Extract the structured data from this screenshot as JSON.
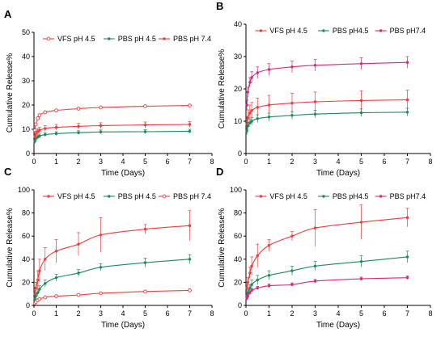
{
  "colors": {
    "red": "#ee3b3b",
    "green": "#1e8a5a",
    "pink": "#d6297a"
  },
  "chart_data": [
    {
      "panel": "A",
      "type": "line",
      "xlabel": "Time (Days)",
      "ylabel": "Cumulative Release%",
      "xlim": [
        0,
        8
      ],
      "ylim": [
        0,
        50
      ],
      "xticks": [
        0,
        1,
        2,
        3,
        4,
        5,
        6,
        7,
        8
      ],
      "yticks": [
        0,
        10,
        20,
        30,
        40,
        50
      ],
      "legend_position": "top",
      "series": [
        {
          "name": "VFS pH 4.5",
          "color": "red",
          "marker": "open-circle",
          "x": [
            0.04,
            0.08,
            0.17,
            0.25,
            0.5,
            1,
            2,
            3,
            5,
            7
          ],
          "y": [
            9.5,
            12.0,
            14.5,
            15.8,
            17.0,
            17.8,
            18.5,
            19.0,
            19.5,
            19.8
          ],
          "err": [
            0.4,
            0.5,
            0.5,
            0.5,
            0.4,
            0.4,
            0.4,
            0.4,
            0.4,
            0.4
          ]
        },
        {
          "name": "PBS pH 4.5",
          "color": "green",
          "marker": "dot",
          "x": [
            0.04,
            0.08,
            0.17,
            0.25,
            0.5,
            1,
            2,
            3,
            5,
            7
          ],
          "y": [
            5.0,
            6.0,
            6.8,
            7.2,
            7.8,
            8.2,
            8.6,
            8.9,
            9.0,
            9.2
          ],
          "err": [
            0.8,
            0.8,
            0.8,
            0.8,
            0.8,
            0.8,
            0.8,
            0.8,
            0.8,
            0.8
          ]
        },
        {
          "name": "PBS pH 7.4",
          "color": "red",
          "marker": "dot",
          "x": [
            0.04,
            0.08,
            0.17,
            0.25,
            0.5,
            1,
            2,
            3,
            5,
            7
          ],
          "y": [
            7.0,
            8.0,
            9.0,
            9.6,
            10.3,
            10.8,
            11.2,
            11.5,
            11.8,
            12.0
          ],
          "err": [
            1.2,
            1.2,
            1.2,
            1.2,
            1.2,
            1.2,
            1.2,
            1.2,
            1.2,
            1.2
          ]
        }
      ]
    },
    {
      "panel": "B",
      "type": "line",
      "xlabel": "Time (Days)",
      "ylabel": "Cumulative Release%",
      "xlim": [
        0,
        8
      ],
      "ylim": [
        0,
        40
      ],
      "xticks": [
        0,
        1,
        2,
        3,
        4,
        5,
        6,
        7,
        8
      ],
      "yticks": [
        0,
        10,
        20,
        30,
        40
      ],
      "legend_position": "top",
      "series": [
        {
          "name": "VFS pH 4.5",
          "color": "red",
          "marker": "dot",
          "x": [
            0.04,
            0.08,
            0.17,
            0.25,
            0.5,
            1,
            2,
            3,
            5,
            7
          ],
          "y": [
            9.0,
            11.0,
            12.5,
            13.3,
            14.3,
            15.0,
            15.6,
            16.0,
            16.4,
            16.6
          ],
          "err": [
            2.5,
            2.5,
            2.5,
            2.5,
            2.8,
            3.0,
            3.0,
            3.0,
            3.0,
            3.0
          ]
        },
        {
          "name": "PBS pH4.5",
          "color": "green",
          "marker": "dot",
          "x": [
            0.04,
            0.08,
            0.17,
            0.25,
            0.5,
            1,
            2,
            3,
            5,
            7
          ],
          "y": [
            7.0,
            8.5,
            9.5,
            10.0,
            10.8,
            11.3,
            11.8,
            12.2,
            12.6,
            12.8
          ],
          "err": [
            1.2,
            1.2,
            1.2,
            1.2,
            1.2,
            1.2,
            1.2,
            1.2,
            1.2,
            1.2
          ]
        },
        {
          "name": "PBS pH7.4",
          "color": "pink",
          "marker": "dot",
          "x": [
            0.04,
            0.08,
            0.17,
            0.25,
            0.5,
            1,
            2,
            3,
            5,
            7
          ],
          "y": [
            15.0,
            19.0,
            22.0,
            23.5,
            25.0,
            26.0,
            26.8,
            27.3,
            27.8,
            28.2
          ],
          "err": [
            1.5,
            1.5,
            1.5,
            1.8,
            1.8,
            1.8,
            1.8,
            1.8,
            1.8,
            1.8
          ]
        }
      ]
    },
    {
      "panel": "C",
      "type": "line",
      "xlabel": "Time (Days)",
      "ylabel": "Cumulative Release%",
      "xlim": [
        0,
        8
      ],
      "ylim": [
        0,
        100
      ],
      "xticks": [
        0,
        1,
        2,
        3,
        4,
        5,
        6,
        7,
        8
      ],
      "yticks": [
        0,
        20,
        40,
        60,
        80,
        100
      ],
      "legend_position": "top",
      "series": [
        {
          "name": "VFS pH 4.5",
          "color": "red",
          "marker": "dot",
          "x": [
            0.04,
            0.08,
            0.17,
            0.25,
            0.5,
            1,
            2,
            3,
            5,
            7
          ],
          "y": [
            10,
            15,
            22,
            30,
            40,
            47,
            53,
            61,
            66,
            69
          ],
          "err": [
            3,
            5,
            8,
            10,
            10,
            10,
            10,
            15,
            4,
            13
          ]
        },
        {
          "name": "PBS pH 4.5",
          "color": "green",
          "marker": "dot",
          "x": [
            0.04,
            0.08,
            0.17,
            0.25,
            0.5,
            1,
            2,
            3,
            5,
            7
          ],
          "y": [
            6,
            8,
            11,
            14,
            19,
            24,
            28,
            33,
            37,
            40
          ],
          "err": [
            2,
            2,
            3,
            3,
            3,
            3,
            3,
            3,
            4,
            4
          ]
        },
        {
          "name": "PBS pH 7.4",
          "color": "red",
          "marker": "open-circle",
          "x": [
            0.04,
            0.08,
            0.17,
            0.25,
            0.5,
            1,
            2,
            3,
            5,
            7
          ],
          "y": [
            2,
            3,
            4.5,
            5.5,
            7,
            8,
            9,
            10.5,
            12,
            13
          ],
          "err": [
            0.5,
            0.5,
            0.5,
            0.5,
            0.5,
            0.5,
            0.5,
            0.5,
            0.5,
            0.5
          ]
        }
      ]
    },
    {
      "panel": "D",
      "type": "line",
      "xlabel": "Time (Days)",
      "ylabel": "Cumulative Release%",
      "xlim": [
        0,
        8
      ],
      "ylim": [
        0,
        100
      ],
      "xticks": [
        0,
        1,
        2,
        3,
        4,
        5,
        6,
        7,
        8
      ],
      "yticks": [
        0,
        20,
        40,
        60,
        80,
        100
      ],
      "legend_position": "top",
      "series": [
        {
          "name": "VFS pH 4.5",
          "color": "red",
          "marker": "dot",
          "x": [
            0.04,
            0.08,
            0.17,
            0.25,
            0.5,
            1,
            2,
            3,
            5,
            7
          ],
          "y": [
            15,
            20,
            28,
            34,
            43,
            52,
            60,
            67,
            72,
            76
          ],
          "err": [
            3,
            4,
            5,
            8,
            10,
            5,
            4,
            16,
            15,
            8
          ]
        },
        {
          "name": "PBS pH4.5",
          "color": "green",
          "marker": "dot",
          "x": [
            0.04,
            0.08,
            0.17,
            0.25,
            0.5,
            1,
            2,
            3,
            5,
            7
          ],
          "y": [
            8,
            11,
            15,
            18,
            22,
            26,
            30,
            34,
            38,
            42
          ],
          "err": [
            2,
            3,
            3,
            4,
            4,
            4,
            4,
            4,
            5,
            5
          ]
        },
        {
          "name": "PBS pH7.4",
          "color": "pink",
          "marker": "dot",
          "x": [
            0.04,
            0.08,
            0.17,
            0.25,
            0.5,
            1,
            2,
            3,
            5,
            7
          ],
          "y": [
            6,
            8,
            11,
            13,
            15,
            17,
            18,
            21,
            23,
            24
          ],
          "err": [
            1.5,
            1.5,
            1.5,
            1.5,
            1.5,
            1.5,
            1.5,
            1.5,
            1.5,
            1.5
          ]
        }
      ]
    }
  ]
}
